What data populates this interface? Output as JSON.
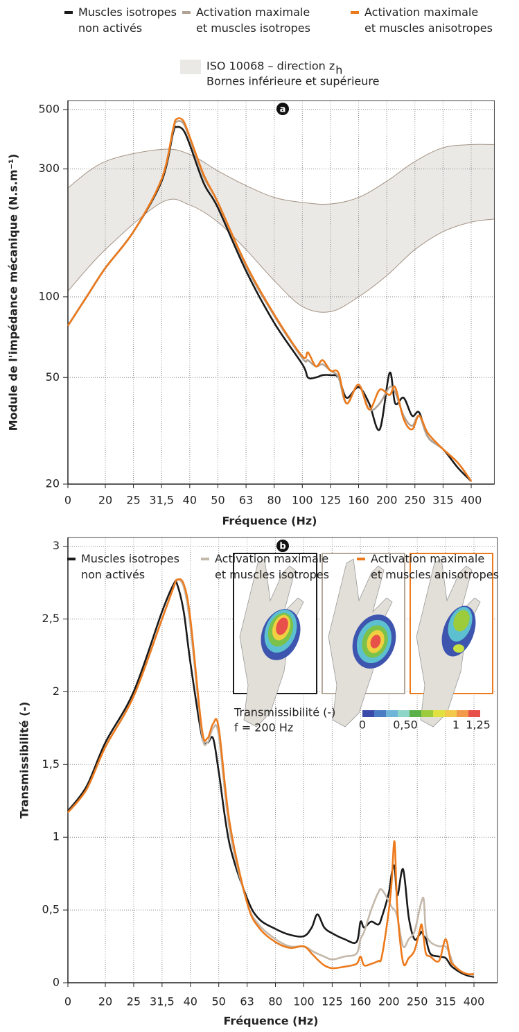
{
  "chart_data": [
    {
      "type": "line",
      "panel_label": "a",
      "y_label": "Module de l'impédance mécanique (N.s.m⁻¹)",
      "x_label": "Fréquence (Hz)",
      "log_y": true,
      "grid": true,
      "ylim": [
        20,
        540
      ],
      "yticks": [
        20,
        50,
        100,
        300,
        500
      ],
      "xticks": [
        0,
        20,
        25,
        {
          "value": 31.5,
          "label": "31,5"
        },
        40,
        50,
        63,
        80,
        100,
        125,
        160,
        200,
        250,
        315,
        400
      ],
      "xlim": [
        0,
        470
      ],
      "x": [
        0,
        10,
        20,
        25,
        31.5,
        35,
        36,
        38,
        40,
        45,
        50,
        63,
        80,
        100,
        105,
        112,
        118,
        125,
        135,
        145,
        160,
        175,
        190,
        205,
        215,
        230,
        245,
        260,
        280,
        315,
        360,
        400
      ],
      "series": [
        {
          "name": "Muscles isotropes\nnon activés",
          "color": "#1a1a1a",
          "values": [
            78,
            100,
            128,
            175,
            270,
            410,
            430,
            420,
            370,
            265,
            215,
            125,
            80,
            56,
            50,
            50,
            51,
            51,
            50,
            42,
            46,
            40,
            32,
            52,
            40,
            42,
            36,
            37,
            30,
            27,
            23,
            20.5
          ]
        },
        {
          "name": "Activation maximale\net muscles isotropes",
          "color": "#b0a396",
          "values": [
            78,
            100,
            128,
            175,
            275,
            420,
            450,
            445,
            390,
            280,
            225,
            130,
            85,
            59,
            58,
            55,
            56,
            53,
            50,
            40,
            47,
            38,
            40,
            46,
            44,
            36,
            33,
            36,
            30,
            27,
            24,
            20.5
          ]
        },
        {
          "name": "Activation maximale\net muscles anisotropes",
          "color": "#ec7a1c",
          "values": [
            78,
            100,
            128,
            175,
            275,
            425,
            460,
            455,
            395,
            285,
            225,
            132,
            86,
            60,
            62,
            55,
            58,
            53,
            52,
            40,
            47,
            38,
            45,
            43,
            46,
            35,
            32,
            36,
            31,
            27,
            24,
            20.5
          ]
        }
      ],
      "band": {
        "name": "ISO 10068 – direction z",
        "name_subscript": "h",
        "name_line2": "Bornes inférieure et supérieure",
        "fill": "#ebe9e6",
        "stroke": "#a39282",
        "x": [
          0,
          20,
          31.5,
          40,
          50,
          63,
          80,
          100,
          125,
          160,
          200,
          250,
          315,
          400,
          470
        ],
        "lower": [
          105,
          150,
          225,
          220,
          190,
          150,
          115,
          92,
          88,
          100,
          120,
          150,
          175,
          190,
          195
        ],
        "upper": [
          255,
          320,
          355,
          340,
          295,
          260,
          235,
          225,
          222,
          235,
          270,
          320,
          360,
          370,
          370
        ]
      }
    },
    {
      "type": "line",
      "panel_label": "b",
      "y_label": "Transmissibilité (-)",
      "x_label": "Fréquence (Hz)",
      "log_y": false,
      "grid": true,
      "ylim": [
        0,
        3.06
      ],
      "yticks": [
        0,
        {
          "value": 0.5,
          "label": "0,5"
        },
        1,
        {
          "value": 1.5,
          "label": "1,5"
        },
        2,
        {
          "value": 2.5,
          "label": "2,5"
        },
        3
      ],
      "xticks": [
        0,
        20,
        25,
        {
          "value": 31.5,
          "label": "31,5"
        },
        40,
        50,
        63,
        80,
        100,
        125,
        160,
        200,
        250,
        315,
        400
      ],
      "xlim": [
        0,
        470
      ],
      "x": [
        0,
        10,
        20,
        25,
        31.5,
        35,
        36,
        38,
        40,
        44,
        46,
        48,
        50,
        55,
        63,
        70,
        80,
        90,
        100,
        107,
        112,
        118,
        125,
        140,
        155,
        160,
        165,
        175,
        185,
        190,
        200,
        205,
        210,
        215,
        225,
        235,
        245,
        255,
        260,
        265,
        270,
        280,
        300,
        315,
        330,
        340,
        360,
        380,
        400
      ],
      "series": [
        {
          "name": "Muscles isotropes\nnon activés",
          "color": "#1a1a1a",
          "values": [
            1.18,
            1.35,
            1.65,
            2.0,
            2.55,
            2.74,
            2.74,
            2.55,
            2.2,
            1.7,
            1.65,
            1.68,
            1.45,
            0.95,
            0.58,
            0.44,
            0.37,
            0.33,
            0.32,
            0.38,
            0.47,
            0.38,
            0.34,
            0.3,
            0.28,
            0.42,
            0.38,
            0.42,
            0.4,
            0.45,
            0.62,
            0.75,
            0.8,
            0.6,
            0.78,
            0.45,
            0.3,
            0.33,
            0.35,
            0.32,
            0.3,
            0.2,
            0.18,
            0.17,
            0.12,
            0.1,
            0.07,
            0.05,
            0.04
          ]
        },
        {
          "name": "Activation maximale\net muscles isotropes",
          "color": "#c4b8ab",
          "values": [
            1.17,
            1.33,
            1.62,
            1.97,
            2.5,
            2.72,
            2.77,
            2.72,
            2.45,
            1.72,
            1.65,
            1.75,
            1.7,
            1.05,
            0.55,
            0.4,
            0.3,
            0.25,
            0.25,
            0.22,
            0.2,
            0.18,
            0.16,
            0.18,
            0.2,
            0.3,
            0.35,
            0.5,
            0.62,
            0.64,
            0.56,
            0.52,
            0.5,
            0.45,
            0.25,
            0.3,
            0.35,
            0.5,
            0.56,
            0.57,
            0.35,
            0.28,
            0.25,
            0.25,
            0.18,
            0.12,
            0.08,
            0.06,
            0.05
          ]
        },
        {
          "name": "Activation maximale\net muscles anisotropes",
          "color": "#ec7a1c",
          "values": [
            1.17,
            1.33,
            1.62,
            1.97,
            2.5,
            2.72,
            2.77,
            2.74,
            2.5,
            1.75,
            1.68,
            1.78,
            1.75,
            1.1,
            0.55,
            0.38,
            0.28,
            0.24,
            0.25,
            0.2,
            0.16,
            0.12,
            0.1,
            0.11,
            0.13,
            0.18,
            0.12,
            0.13,
            0.15,
            0.18,
            0.5,
            0.7,
            0.97,
            0.5,
            0.14,
            0.17,
            0.22,
            0.35,
            0.4,
            0.3,
            0.2,
            0.18,
            0.15,
            0.3,
            0.15,
            0.12,
            0.08,
            0.06,
            0.06
          ]
        }
      ],
      "inset": {
        "title": "Transmissibilité (-)",
        "frequency": "f = 200 Hz",
        "colorbar_labels": [
          "0",
          "0,50",
          "1",
          "1,25"
        ]
      }
    }
  ]
}
